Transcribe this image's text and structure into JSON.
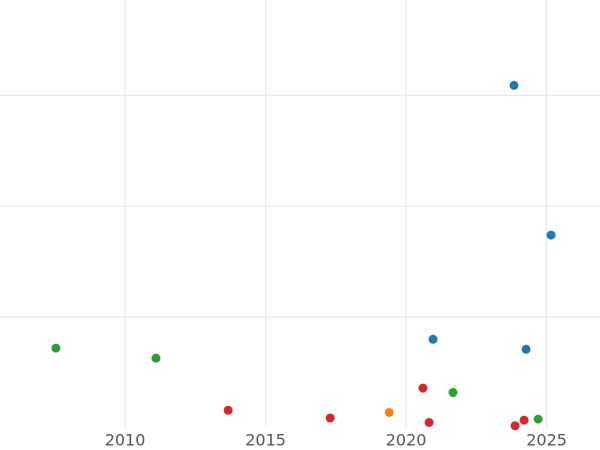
{
  "chart_data": {
    "type": "scatter",
    "xlim": [
      2005.55,
      2026.9
    ],
    "xticks": [
      2010,
      2015,
      2020,
      2025
    ],
    "ylim": [
      0,
      3.86
    ],
    "ygrid": [
      1,
      2,
      3
    ],
    "grid": true,
    "series": [
      {
        "color": "#1f77b4",
        "x": [
          2023.84,
          2025.16,
          2020.96,
          2024.27
        ],
        "values": [
          3.09,
          1.74,
          0.8,
          0.71
        ]
      },
      {
        "color": "#2ca02c",
        "x": [
          2007.54,
          2011.1,
          2021.67,
          2024.7
        ],
        "values": [
          0.72,
          0.63,
          0.32,
          0.08
        ]
      },
      {
        "color": "#d62728",
        "x": [
          2013.67,
          2017.3,
          2020.6,
          2020.82,
          2023.88,
          2024.2
        ],
        "values": [
          0.16,
          0.09,
          0.36,
          0.05,
          0.02,
          0.07
        ]
      },
      {
        "color": "#ff7f0e",
        "x": [
          2019.4
        ],
        "values": [
          0.14
        ]
      }
    ]
  }
}
